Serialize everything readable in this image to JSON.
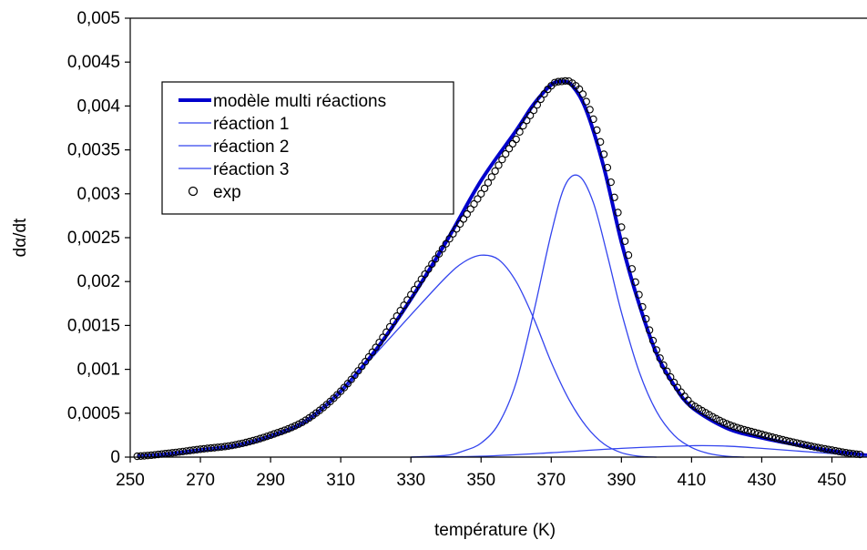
{
  "chart_data": {
    "type": "line",
    "title": "",
    "xlabel": "température (K)",
    "ylabel": "dα/dt",
    "xlim": [
      250,
      460
    ],
    "ylim": [
      0,
      0.005
    ],
    "x_ticks": [
      "250",
      "270",
      "290",
      "310",
      "330",
      "350",
      "370",
      "390",
      "410",
      "430",
      "450"
    ],
    "y_ticks": [
      "0",
      "0,0005",
      "0,001",
      "0,0015",
      "0,002",
      "0,0025",
      "0,003",
      "0,0035",
      "0,004",
      "0,0045",
      "0,005"
    ],
    "grid": false,
    "legend_position": "top-left",
    "series": [
      {
        "name": "modèle multi réactions",
        "style": "line-thick",
        "color": "#0000cc",
        "points": [
          [
            252,
            1e-05
          ],
          [
            260,
            3e-05
          ],
          [
            270,
            8e-05
          ],
          [
            280,
            0.00013
          ],
          [
            290,
            0.00024
          ],
          [
            300,
            0.00041
          ],
          [
            310,
            0.00075
          ],
          [
            320,
            0.00122
          ],
          [
            330,
            0.0018
          ],
          [
            340,
            0.00245
          ],
          [
            350,
            0.00315
          ],
          [
            360,
            0.00372
          ],
          [
            365,
            0.00402
          ],
          [
            370,
            0.00424
          ],
          [
            373,
            0.00428
          ],
          [
            376,
            0.00423
          ],
          [
            380,
            0.00395
          ],
          [
            385,
            0.0033
          ],
          [
            390,
            0.00245
          ],
          [
            395,
            0.00175
          ],
          [
            400,
            0.00118
          ],
          [
            405,
            0.00082
          ],
          [
            410,
            0.00057
          ],
          [
            420,
            0.00033
          ],
          [
            430,
            0.00022
          ],
          [
            440,
            0.00014
          ],
          [
            450,
            7e-05
          ],
          [
            460,
            2e-05
          ]
        ]
      },
      {
        "name": "réaction 1",
        "style": "line-thin",
        "color": "#3344ee",
        "points": [
          [
            252,
            1e-05
          ],
          [
            260,
            3e-05
          ],
          [
            270,
            8e-05
          ],
          [
            280,
            0.00013
          ],
          [
            290,
            0.00024
          ],
          [
            300,
            0.00041
          ],
          [
            310,
            0.00075
          ],
          [
            320,
            0.00118
          ],
          [
            330,
            0.00162
          ],
          [
            340,
            0.00205
          ],
          [
            345,
            0.00222
          ],
          [
            350,
            0.0023
          ],
          [
            355,
            0.00225
          ],
          [
            360,
            0.002
          ],
          [
            365,
            0.00158
          ],
          [
            370,
            0.00108
          ],
          [
            375,
            0.00066
          ],
          [
            380,
            0.00035
          ],
          [
            385,
            0.00015
          ],
          [
            390,
            5e-05
          ],
          [
            395,
            1e-05
          ],
          [
            400,
            0.0
          ]
        ]
      },
      {
        "name": "réaction 2",
        "style": "line-thin",
        "color": "#3344ee",
        "points": [
          [
            330,
            0.0
          ],
          [
            340,
            2e-05
          ],
          [
            345,
            7e-05
          ],
          [
            350,
            0.00016
          ],
          [
            355,
            0.00038
          ],
          [
            360,
            0.00085
          ],
          [
            365,
            0.00165
          ],
          [
            370,
            0.00255
          ],
          [
            374,
            0.0031
          ],
          [
            378,
            0.0032
          ],
          [
            382,
            0.0029
          ],
          [
            386,
            0.0023
          ],
          [
            390,
            0.00165
          ],
          [
            395,
            0.00098
          ],
          [
            400,
            0.00052
          ],
          [
            405,
            0.00025
          ],
          [
            410,
            0.00011
          ],
          [
            415,
            4e-05
          ],
          [
            420,
            1e-05
          ],
          [
            425,
            0.0
          ]
        ]
      },
      {
        "name": "réaction 3",
        "style": "line-thin",
        "color": "#3344ee",
        "points": [
          [
            330,
            0.0
          ],
          [
            350,
            1e-05
          ],
          [
            370,
            5e-05
          ],
          [
            390,
            0.0001
          ],
          [
            410,
            0.00013
          ],
          [
            420,
            0.000125
          ],
          [
            430,
            0.0001
          ],
          [
            440,
            7e-05
          ],
          [
            450,
            4e-05
          ],
          [
            460,
            1e-05
          ]
        ]
      },
      {
        "name": "exp",
        "style": "markers-circle-open",
        "color": "#000000",
        "points": [
          [
            252,
            1e-05
          ],
          [
            260,
            4e-05
          ],
          [
            270,
            9e-05
          ],
          [
            280,
            0.00014
          ],
          [
            290,
            0.00025
          ],
          [
            300,
            0.00042
          ],
          [
            310,
            0.00075
          ],
          [
            320,
            0.00125
          ],
          [
            330,
            0.00185
          ],
          [
            340,
            0.00243
          ],
          [
            350,
            0.003
          ],
          [
            360,
            0.00362
          ],
          [
            365,
            0.00395
          ],
          [
            370,
            0.00423
          ],
          [
            373,
            0.00428
          ],
          [
            376,
            0.00426
          ],
          [
            380,
            0.00405
          ],
          [
            385,
            0.00345
          ],
          [
            390,
            0.00262
          ],
          [
            395,
            0.00185
          ],
          [
            400,
            0.00122
          ],
          [
            405,
            0.00085
          ],
          [
            410,
            0.0006
          ],
          [
            420,
            0.00038
          ],
          [
            430,
            0.00026
          ],
          [
            440,
            0.00016
          ],
          [
            450,
            8e-05
          ],
          [
            458,
            3e-05
          ]
        ]
      }
    ]
  }
}
